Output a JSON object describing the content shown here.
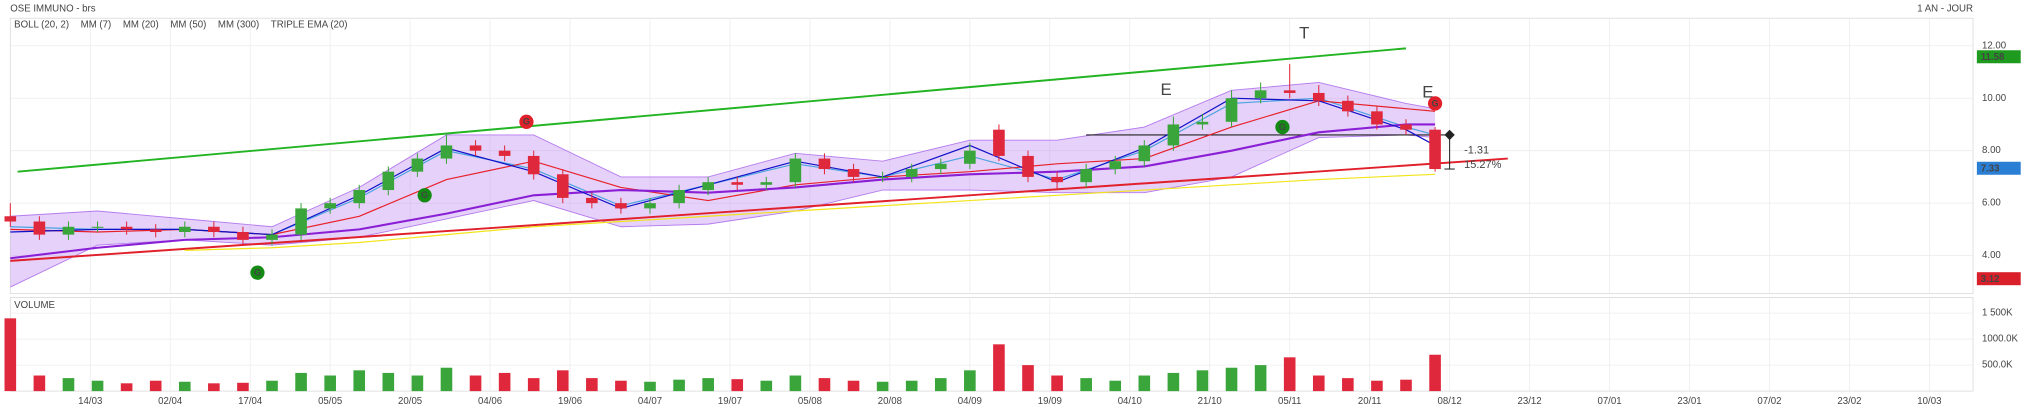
{
  "chart_data": [
    {
      "type": "candlestick",
      "title": "OSE IMMUNO - brs",
      "period": "1 AN - JOUR",
      "x": [
        0,
        4,
        8,
        12,
        16,
        20,
        24,
        28,
        32,
        36,
        40,
        44,
        48,
        52,
        56,
        60,
        64,
        68,
        72,
        76,
        80,
        84,
        88,
        92,
        96,
        100,
        104,
        108,
        112,
        116,
        120,
        124,
        128,
        132,
        136,
        140,
        144,
        148,
        152,
        156,
        160,
        164,
        168,
        172,
        176,
        180,
        184,
        188,
        192,
        196
      ],
      "open": [
        5.5,
        5.3,
        4.8,
        5.1,
        5.1,
        5.0,
        4.9,
        5.1,
        4.9,
        4.6,
        4.8,
        5.8,
        6.0,
        6.5,
        7.2,
        7.7,
        8.2,
        8.0,
        7.8,
        7.1,
        6.2,
        6.0,
        5.8,
        6.0,
        6.5,
        6.8,
        6.7,
        6.8,
        7.7,
        7.3,
        7.0,
        7.0,
        7.3,
        7.5,
        8.8,
        7.8,
        7.0,
        6.8,
        7.3,
        7.6,
        8.2,
        9.0,
        9.1,
        10.0,
        10.3,
        10.2,
        9.9,
        9.5,
        9.0,
        8.8
      ],
      "high": [
        6.0,
        5.5,
        5.3,
        5.3,
        5.3,
        5.2,
        5.3,
        5.3,
        5.1,
        5.0,
        6.0,
        6.2,
        6.7,
        7.4,
        7.9,
        8.6,
        8.4,
        8.2,
        8.0,
        7.3,
        6.4,
        6.2,
        6.2,
        6.7,
        7.0,
        7.0,
        7.0,
        7.9,
        7.9,
        7.5,
        7.2,
        7.5,
        7.7,
        8.3,
        9.0,
        8.0,
        7.2,
        7.5,
        7.8,
        8.4,
        9.3,
        9.4,
        10.3,
        10.6,
        11.3,
        10.5,
        10.1,
        9.7,
        9.2,
        8.9
      ],
      "low": [
        5.1,
        4.6,
        4.6,
        4.9,
        4.8,
        4.7,
        4.7,
        4.7,
        4.4,
        4.4,
        4.6,
        5.6,
        5.8,
        6.3,
        7.0,
        7.5,
        7.8,
        7.6,
        6.9,
        6.0,
        5.8,
        5.6,
        5.6,
        5.8,
        6.3,
        6.5,
        6.5,
        6.6,
        7.1,
        6.8,
        6.8,
        6.8,
        7.1,
        7.3,
        7.6,
        6.8,
        6.5,
        6.6,
        7.1,
        7.4,
        8.0,
        8.8,
        8.9,
        9.8,
        10.0,
        9.7,
        9.3,
        8.8,
        8.6,
        7.2
      ],
      "close": [
        5.3,
        4.8,
        5.1,
        5.1,
        5.0,
        4.9,
        5.1,
        4.9,
        4.6,
        4.8,
        5.8,
        6.0,
        6.5,
        7.2,
        7.7,
        8.2,
        8.0,
        7.8,
        7.1,
        6.2,
        6.0,
        5.8,
        6.0,
        6.5,
        6.8,
        6.7,
        6.8,
        7.7,
        7.3,
        7.0,
        7.0,
        7.3,
        7.5,
        8.0,
        7.8,
        7.0,
        6.8,
        7.3,
        7.6,
        8.2,
        9.0,
        9.1,
        10.0,
        10.3,
        10.2,
        9.9,
        9.5,
        9.0,
        8.8,
        7.3
      ],
      "up_color": "#3aa53a",
      "down_color": "#e0283c",
      "xlim": [
        0,
        270
      ],
      "xticks": [
        {
          "value": 11,
          "label": "14/03"
        },
        {
          "value": 22,
          "label": "02/04"
        },
        {
          "value": 33,
          "label": "17/04"
        },
        {
          "value": 44,
          "label": "05/05"
        },
        {
          "value": 55,
          "label": "20/05"
        },
        {
          "value": 66,
          "label": "04/06"
        },
        {
          "value": 77,
          "label": "19/06"
        },
        {
          "value": 88,
          "label": "04/07"
        },
        {
          "value": 99,
          "label": "19/07"
        },
        {
          "value": 110,
          "label": "05/08"
        },
        {
          "value": 121,
          "label": "20/08"
        },
        {
          "value": 132,
          "label": "04/09"
        },
        {
          "value": 143,
          "label": "19/09"
        },
        {
          "value": 154,
          "label": "04/10"
        },
        {
          "value": 165,
          "label": "21/10"
        },
        {
          "value": 176,
          "label": "05/11"
        },
        {
          "value": 187,
          "label": "20/11"
        },
        {
          "value": 198,
          "label": "08/12"
        },
        {
          "value": 209,
          "label": "23/12"
        },
        {
          "value": 220,
          "label": "07/01"
        },
        {
          "value": 231,
          "label": "23/01"
        },
        {
          "value": 242,
          "label": "07/02"
        },
        {
          "value": 253,
          "label": "23/02"
        },
        {
          "value": 264,
          "label": "10/03"
        }
      ],
      "ylim": [
        2.55,
        13.05
      ],
      "yticks": [
        {
          "value": 4,
          "label": "4.00"
        },
        {
          "value": 6,
          "label": "6.00"
        },
        {
          "value": 8,
          "label": "8.00"
        },
        {
          "value": 10,
          "label": "10.00"
        },
        {
          "value": 12,
          "label": "12.00"
        }
      ],
      "grid": true,
      "overlays": {
        "x": [
          0,
          12,
          24,
          36,
          48,
          60,
          72,
          84,
          96,
          108,
          120,
          132,
          144,
          156,
          168,
          180,
          192,
          196
        ],
        "series": [
          {
            "name": "BOLL (20, 2)",
            "color": "#b57bee",
            "upper": [
              5.5,
              5.7,
              5.4,
              5.1,
              6.6,
              8.6,
              8.6,
              7.0,
              7.0,
              7.9,
              7.6,
              8.4,
              8.4,
              8.9,
              10.3,
              10.6,
              9.8,
              9.6
            ],
            "lower": [
              2.8,
              4.4,
              4.6,
              4.4,
              4.7,
              5.4,
              6.1,
              5.1,
              5.2,
              5.7,
              6.5,
              6.5,
              6.4,
              6.4,
              7.0,
              8.5,
              8.6,
              8.5
            ]
          },
          {
            "name": "MM (7)",
            "color": "#4aa3df",
            "values": [
              5.1,
              5.0,
              5.0,
              4.8,
              6.2,
              8.0,
              7.3,
              5.9,
              6.7,
              7.5,
              7.0,
              7.8,
              6.9,
              8.0,
              9.8,
              10.0,
              8.9,
              8.6
            ]
          },
          {
            "name": "MM (20)",
            "color": "#e8202a",
            "values": [
              5.0,
              4.9,
              5.0,
              4.8,
              5.5,
              6.9,
              7.6,
              6.6,
              6.1,
              6.7,
              7.0,
              7.2,
              7.5,
              7.7,
              8.9,
              9.9,
              9.6,
              9.5
            ]
          },
          {
            "name": "MM (50)",
            "color": "#8a1fd6",
            "values": [
              3.9,
              4.3,
              4.6,
              4.7,
              5.0,
              5.6,
              6.3,
              6.5,
              6.4,
              6.6,
              6.9,
              7.1,
              7.2,
              7.4,
              8.0,
              8.7,
              9.0,
              9.0
            ]
          },
          {
            "name": "MM (300)",
            "color": "#f2e41a",
            "values": [
              null,
              null,
              4.2,
              4.3,
              4.5,
              4.8,
              5.1,
              5.3,
              5.5,
              5.7,
              5.9,
              6.1,
              6.3,
              6.5,
              6.7,
              6.9,
              7.05,
              7.1
            ]
          },
          {
            "name": "TRIPLE EMA (20)",
            "color": "#1010c8",
            "values": [
              4.9,
              5.0,
              5.0,
              4.8,
              6.3,
              8.1,
              7.2,
              5.8,
              6.7,
              7.6,
              7.0,
              8.2,
              6.8,
              8.1,
              10.0,
              9.9,
              8.8,
              8.2
            ]
          }
        ]
      },
      "trend_lines": [
        {
          "color": "#22b422",
          "points": [
            [
              1,
              7.2
            ],
            [
              192,
              11.9
            ]
          ]
        },
        {
          "color": "#e0202a",
          "points": [
            [
              0,
              3.8
            ],
            [
              206,
              7.7
            ]
          ]
        },
        {
          "color": "#222222",
          "points": [
            [
              148,
              8.6
            ],
            [
              198,
              8.6
            ]
          ]
        }
      ],
      "measure": {
        "x": 198,
        "from": 8.6,
        "to": 7.3
      },
      "annotations": [
        {
          "text": "T",
          "x": 178,
          "y": 12.45,
          "color": "#e0202a"
        },
        {
          "text": "E",
          "x": 159,
          "y": 10.3,
          "color": "#e0202a"
        },
        {
          "text": "E",
          "x": 195,
          "y": 10.2,
          "color": "#e0202a"
        },
        {
          "text": "-1.31",
          "x": 200,
          "y": 8.0,
          "color": "#222222"
        },
        {
          "text": "15.27%",
          "x": 200,
          "y": 7.45,
          "color": "#222222"
        }
      ],
      "signals": [
        {
          "text": "G",
          "x": 34,
          "y": 3.35,
          "color": "#138a13"
        },
        {
          "text": "G",
          "x": 57,
          "y": 6.3,
          "color": "#138a13"
        },
        {
          "text": "G",
          "x": 71,
          "y": 9.1,
          "color": "#e0202a"
        },
        {
          "text": "G",
          "x": 175,
          "y": 8.9,
          "color": "#138a13"
        },
        {
          "text": "G",
          "x": 196,
          "y": 9.8,
          "color": "#e0202a"
        }
      ],
      "price_badges": [
        {
          "value": 11.58,
          "color": "#1e9a1e"
        },
        {
          "value": 7.33,
          "color": "#2a7fd4"
        },
        {
          "value": 3.12,
          "color": "#d81f2a"
        }
      ]
    },
    {
      "type": "bar",
      "title": "VOLUME",
      "title_color": "#3aa53a",
      "values": [
        1400,
        300,
        250,
        200,
        150,
        200,
        180,
        150,
        160,
        200,
        350,
        300,
        400,
        350,
        300,
        450,
        300,
        350,
        250,
        400,
        250,
        200,
        180,
        220,
        250,
        230,
        200,
        300,
        250,
        200,
        180,
        200,
        250,
        400,
        900,
        500,
        300,
        250,
        200,
        300,
        350,
        400,
        450,
        500,
        650,
        300,
        250,
        200,
        220,
        700
      ],
      "ylim": [
        0,
        1800
      ],
      "yticks": [
        {
          "value": 500,
          "label": "500.0K"
        },
        {
          "value": 1000,
          "label": "1000.0K"
        },
        {
          "value": 1500,
          "label": "1 500K"
        }
      ],
      "grid": true
    }
  ]
}
